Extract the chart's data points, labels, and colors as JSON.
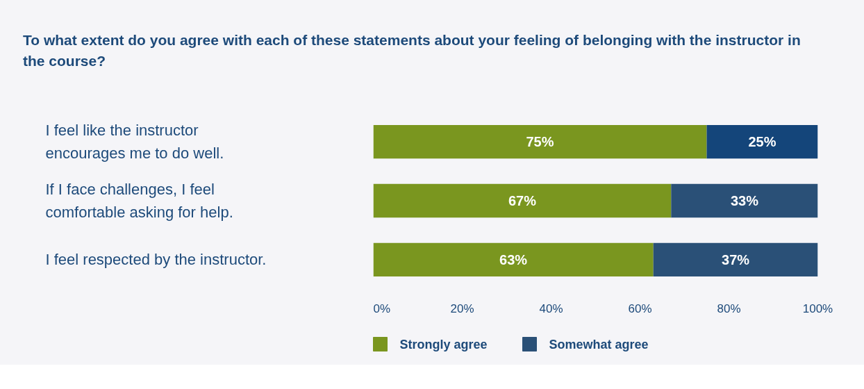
{
  "chart_data": {
    "type": "bar",
    "orientation": "horizontal",
    "stacked": true,
    "title": "To what extent do you agree with each of these statements about your feeling of belonging with the instructor in the course?",
    "categories": [
      "I feel like the instructor encourages me to do well.",
      "If I face challenges, I feel comfortable asking for help.",
      "I feel respected by the instructor."
    ],
    "series": [
      {
        "name": "Strongly agree",
        "color": "#7a961f",
        "values": [
          75,
          67,
          63
        ],
        "value_labels": [
          "75%",
          "67%",
          "63%"
        ]
      },
      {
        "name": "Somewhat agree",
        "color": "#2a5077",
        "colors": [
          "#14457a",
          "#2a5077",
          "#2a5077"
        ],
        "values": [
          25,
          33,
          37
        ],
        "value_labels": [
          "25%",
          "33%",
          "37%"
        ]
      }
    ],
    "xlim": [
      0,
      100
    ],
    "xticks": [
      {
        "value": 0,
        "label": "0%"
      },
      {
        "value": 20,
        "label": "20%"
      },
      {
        "value": 40,
        "label": "40%"
      },
      {
        "value": 60,
        "label": "60%"
      },
      {
        "value": 80,
        "label": "80%"
      },
      {
        "value": 100,
        "label": "100%"
      }
    ],
    "grid": false,
    "legend": "bottom",
    "tick_labels": "x"
  }
}
